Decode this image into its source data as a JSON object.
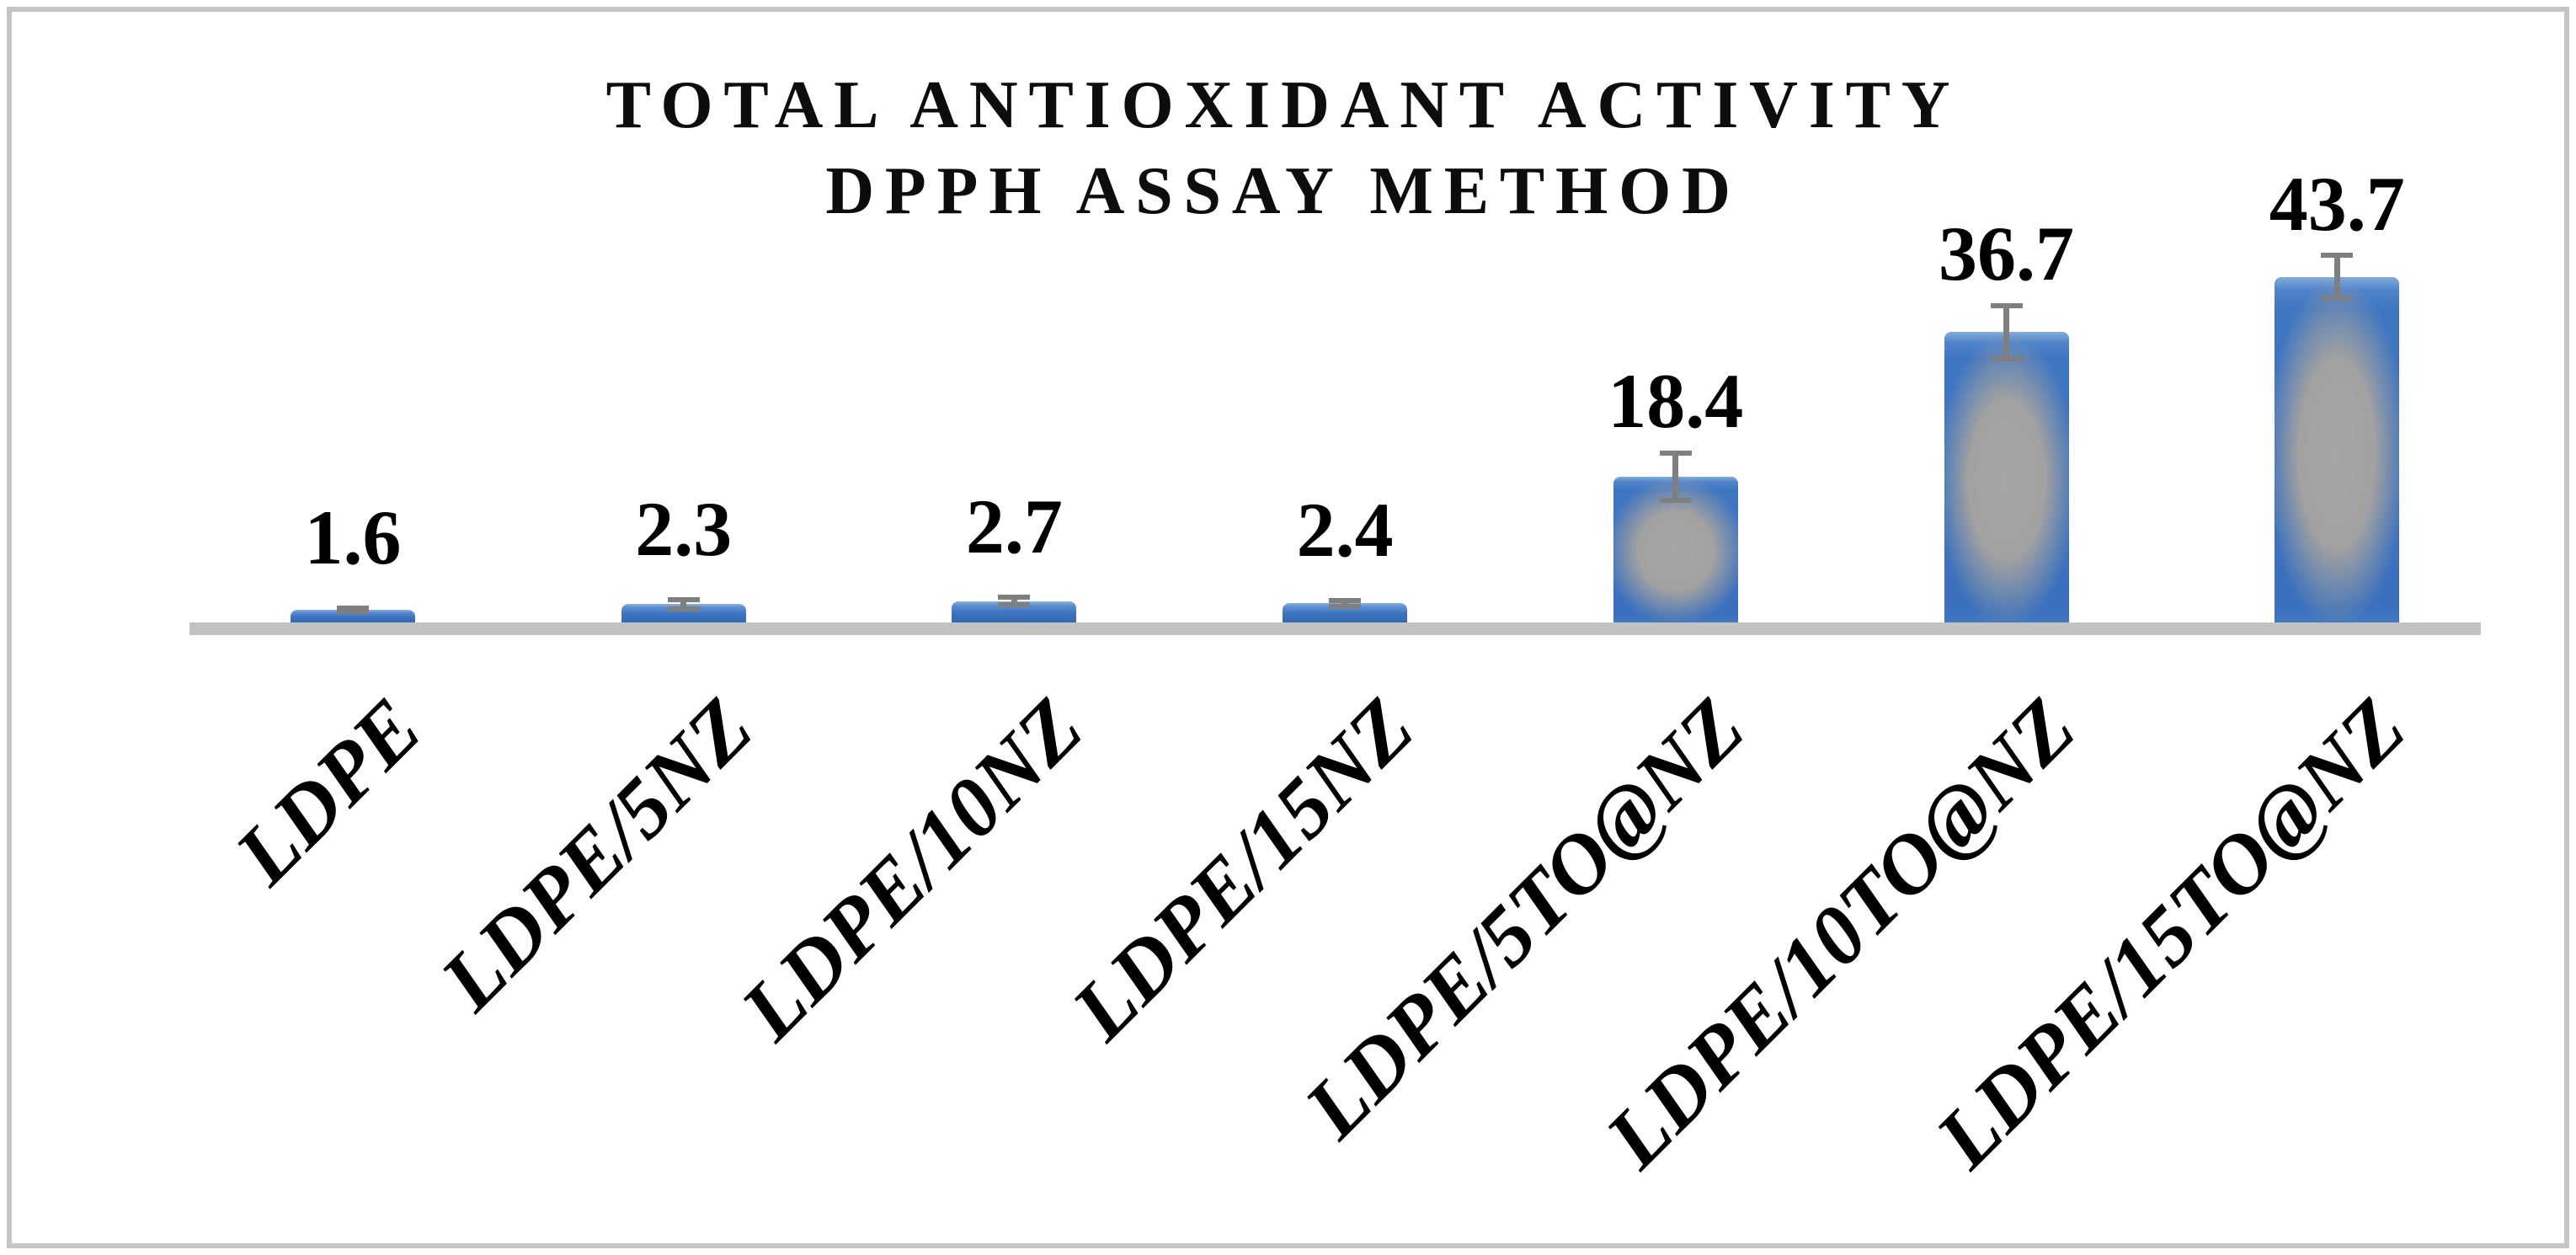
{
  "chart_data": {
    "type": "bar",
    "title": "TOTAL ANTIOXIDANT ACTIVITY DPPH ASSAY METHOD",
    "title_lines": [
      "TOTAL ANTIOXIDANT ACTIVITY",
      "DPPH ASSAY METHOD"
    ],
    "categories": [
      "LDPE",
      "LDPE/5NZ",
      "LDPE/10NZ",
      "LDPE/15NZ",
      "LDPE/5TO@NZ",
      "LDPE/10TO@NZ",
      "LDPE/15TO@NZ"
    ],
    "values": [
      1.6,
      2.3,
      2.7,
      2.4,
      18.4,
      36.7,
      43.7
    ],
    "data_labels": [
      "1.6",
      "2.3",
      "2.7",
      "2.4",
      "18.4",
      "36.7",
      "43.7"
    ],
    "error_bars_plus_minus": [
      0.5,
      0.9,
      0.8,
      0.7,
      3.3,
      3.7,
      3.0
    ],
    "xlabel": "",
    "ylabel": "",
    "ylim": [
      0,
      47
    ],
    "grid": false,
    "legend": false,
    "y_axis_visible": false,
    "colors": {
      "bar_edge_blue": "#3b72c1",
      "bar_center_gray": "#a5a4a1",
      "error_bar_gray": "#7f7f7f",
      "axis_line_gray": "#c2c2c2",
      "text_black": "#000000",
      "frame_gray": "#c5c5c5"
    }
  }
}
